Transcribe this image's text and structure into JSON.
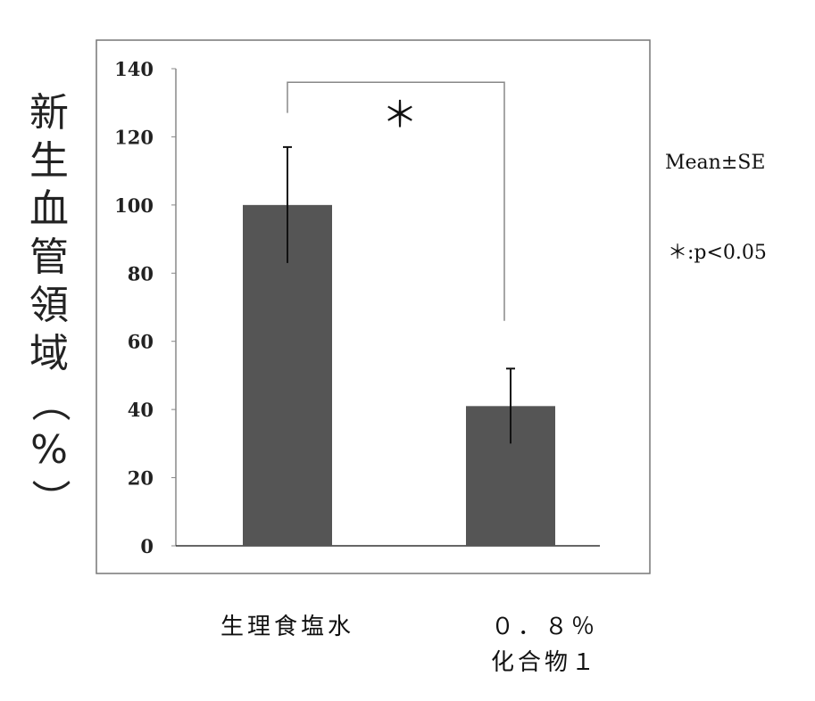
{
  "chart_data": {
    "type": "bar",
    "title": "",
    "ylabel": "新生血管領域（%）",
    "xlabel": "",
    "categories": [
      "生理食塩水",
      "０．８％ 化合物１"
    ],
    "category_lines": [
      [
        "生理食塩水"
      ],
      [
        "０．８％",
        "化合物１"
      ]
    ],
    "values": [
      100,
      41
    ],
    "error_se": [
      17,
      11
    ],
    "ylim": [
      0,
      140
    ],
    "yticks": [
      0,
      20,
      40,
      60,
      80,
      100,
      120,
      140
    ],
    "grid": false,
    "bar_color": "#555555",
    "significance": {
      "marker": "＊",
      "bracket_top": 136,
      "left_end": 127,
      "right_end": 66
    },
    "annotations": [
      "Mean±SE",
      "＊:p<0.05"
    ]
  }
}
